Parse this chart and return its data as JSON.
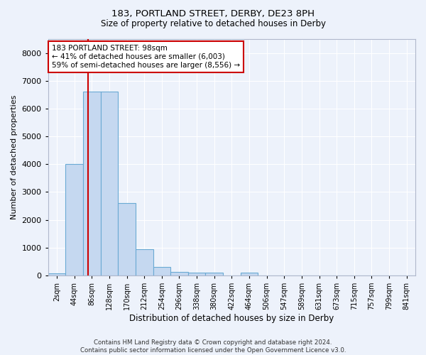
{
  "title1": "183, PORTLAND STREET, DERBY, DE23 8PH",
  "title2": "Size of property relative to detached houses in Derby",
  "xlabel": "Distribution of detached houses by size in Derby",
  "ylabel": "Number of detached properties",
  "bar_color": "#c5d8f0",
  "bar_edge_color": "#6aaad4",
  "categories": [
    "2sqm",
    "44sqm",
    "86sqm",
    "128sqm",
    "170sqm",
    "212sqm",
    "254sqm",
    "296sqm",
    "338sqm",
    "380sqm",
    "422sqm",
    "464sqm",
    "506sqm",
    "547sqm",
    "589sqm",
    "631sqm",
    "673sqm",
    "715sqm",
    "757sqm",
    "799sqm",
    "841sqm"
  ],
  "values": [
    70,
    4000,
    6600,
    6600,
    2600,
    950,
    310,
    130,
    105,
    90,
    0,
    90,
    0,
    0,
    0,
    0,
    0,
    0,
    0,
    0,
    0
  ],
  "ylim": [
    0,
    8500
  ],
  "yticks": [
    0,
    1000,
    2000,
    3000,
    4000,
    5000,
    6000,
    7000,
    8000
  ],
  "annotation_text": "183 PORTLAND STREET: 98sqm\n← 41% of detached houses are smaller (6,003)\n59% of semi-detached houses are larger (8,556) →",
  "annotation_box_color": "#ffffff",
  "annotation_box_edge": "#cc0000",
  "vline_color": "#cc0000",
  "background_color": "#edf2fb",
  "grid_color": "#ffffff",
  "footer": "Contains HM Land Registry data © Crown copyright and database right 2024.\nContains public sector information licensed under the Open Government Licence v3.0.",
  "figsize": [
    6.0,
    5.0
  ],
  "dpi": 100
}
